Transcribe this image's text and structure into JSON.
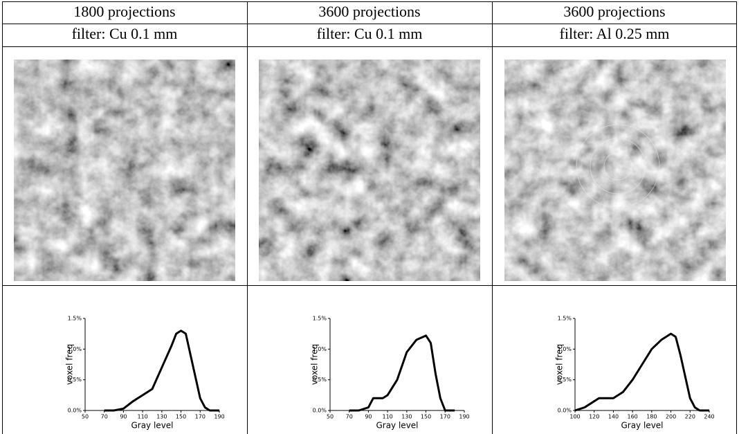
{
  "table": {
    "rows": [
      [
        "1800 projections",
        "3600 projections",
        "3600 projections"
      ],
      [
        "filter: Cu 0.1 mm",
        "filter: Cu 0.1 mm",
        "filter: Al 0.25 mm"
      ]
    ]
  },
  "chart_data": [
    {
      "type": "line",
      "x_label": "Gray level",
      "y_label": "voxel freq",
      "color": "#000000",
      "x": [
        70,
        80,
        90,
        100,
        110,
        120,
        130,
        140,
        145,
        150,
        155,
        160,
        170,
        175,
        180,
        190
      ],
      "values": [
        0,
        0,
        0.03,
        0.15,
        0.25,
        0.35,
        0.7,
        1.05,
        1.25,
        1.3,
        1.25,
        0.9,
        0.2,
        0.05,
        0,
        0
      ],
      "xlim": [
        50,
        190
      ],
      "xticks": [
        50,
        70,
        90,
        110,
        130,
        150,
        170,
        190
      ],
      "ylim": [
        0,
        1.5
      ],
      "yticks": [
        {
          "value": 0,
          "label": "0.0%"
        },
        {
          "value": 0.5,
          "label": "0.5%"
        },
        {
          "value": 1,
          "label": "1.0%"
        },
        {
          "value": 1.5,
          "label": "1.5%"
        }
      ]
    },
    {
      "type": "line",
      "x_label": "Gray level",
      "y_label": "voxel freq",
      "color": "#000000",
      "x": [
        70,
        80,
        90,
        95,
        105,
        110,
        120,
        130,
        140,
        150,
        155,
        160,
        165,
        170,
        180
      ],
      "values": [
        0,
        0,
        0.05,
        0.2,
        0.2,
        0.25,
        0.5,
        0.95,
        1.15,
        1.22,
        1.1,
        0.6,
        0.2,
        0,
        0
      ],
      "xlim": [
        50,
        190
      ],
      "xticks": [
        50,
        70,
        90,
        110,
        130,
        150,
        170,
        190
      ],
      "ylim": [
        0,
        1.5
      ],
      "yticks": [
        {
          "value": 0,
          "label": "0.0%"
        },
        {
          "value": 0.5,
          "label": "0.5%"
        },
        {
          "value": 1,
          "label": "1.0%"
        },
        {
          "value": 1.5,
          "label": "1.5%"
        }
      ]
    },
    {
      "type": "line",
      "x_label": "Gray level",
      "y_label": "voxel freq",
      "color": "#000000",
      "x": [
        100,
        110,
        120,
        125,
        140,
        150,
        160,
        170,
        180,
        190,
        200,
        205,
        210,
        220,
        225,
        230,
        240
      ],
      "values": [
        0,
        0.05,
        0.15,
        0.2,
        0.2,
        0.3,
        0.5,
        0.75,
        1.0,
        1.15,
        1.25,
        1.2,
        0.9,
        0.2,
        0.05,
        0,
        0
      ],
      "xlim": [
        100,
        240
      ],
      "xticks": [
        100,
        120,
        140,
        160,
        180,
        200,
        220,
        240
      ],
      "ylim": [
        0,
        1.5
      ],
      "yticks": [
        {
          "value": 0,
          "label": "0.0%"
        },
        {
          "value": 0.5,
          "label": "0.5%"
        },
        {
          "value": 1,
          "label": "1.0%"
        },
        {
          "value": 1.5,
          "label": "1.5%"
        }
      ]
    }
  ]
}
